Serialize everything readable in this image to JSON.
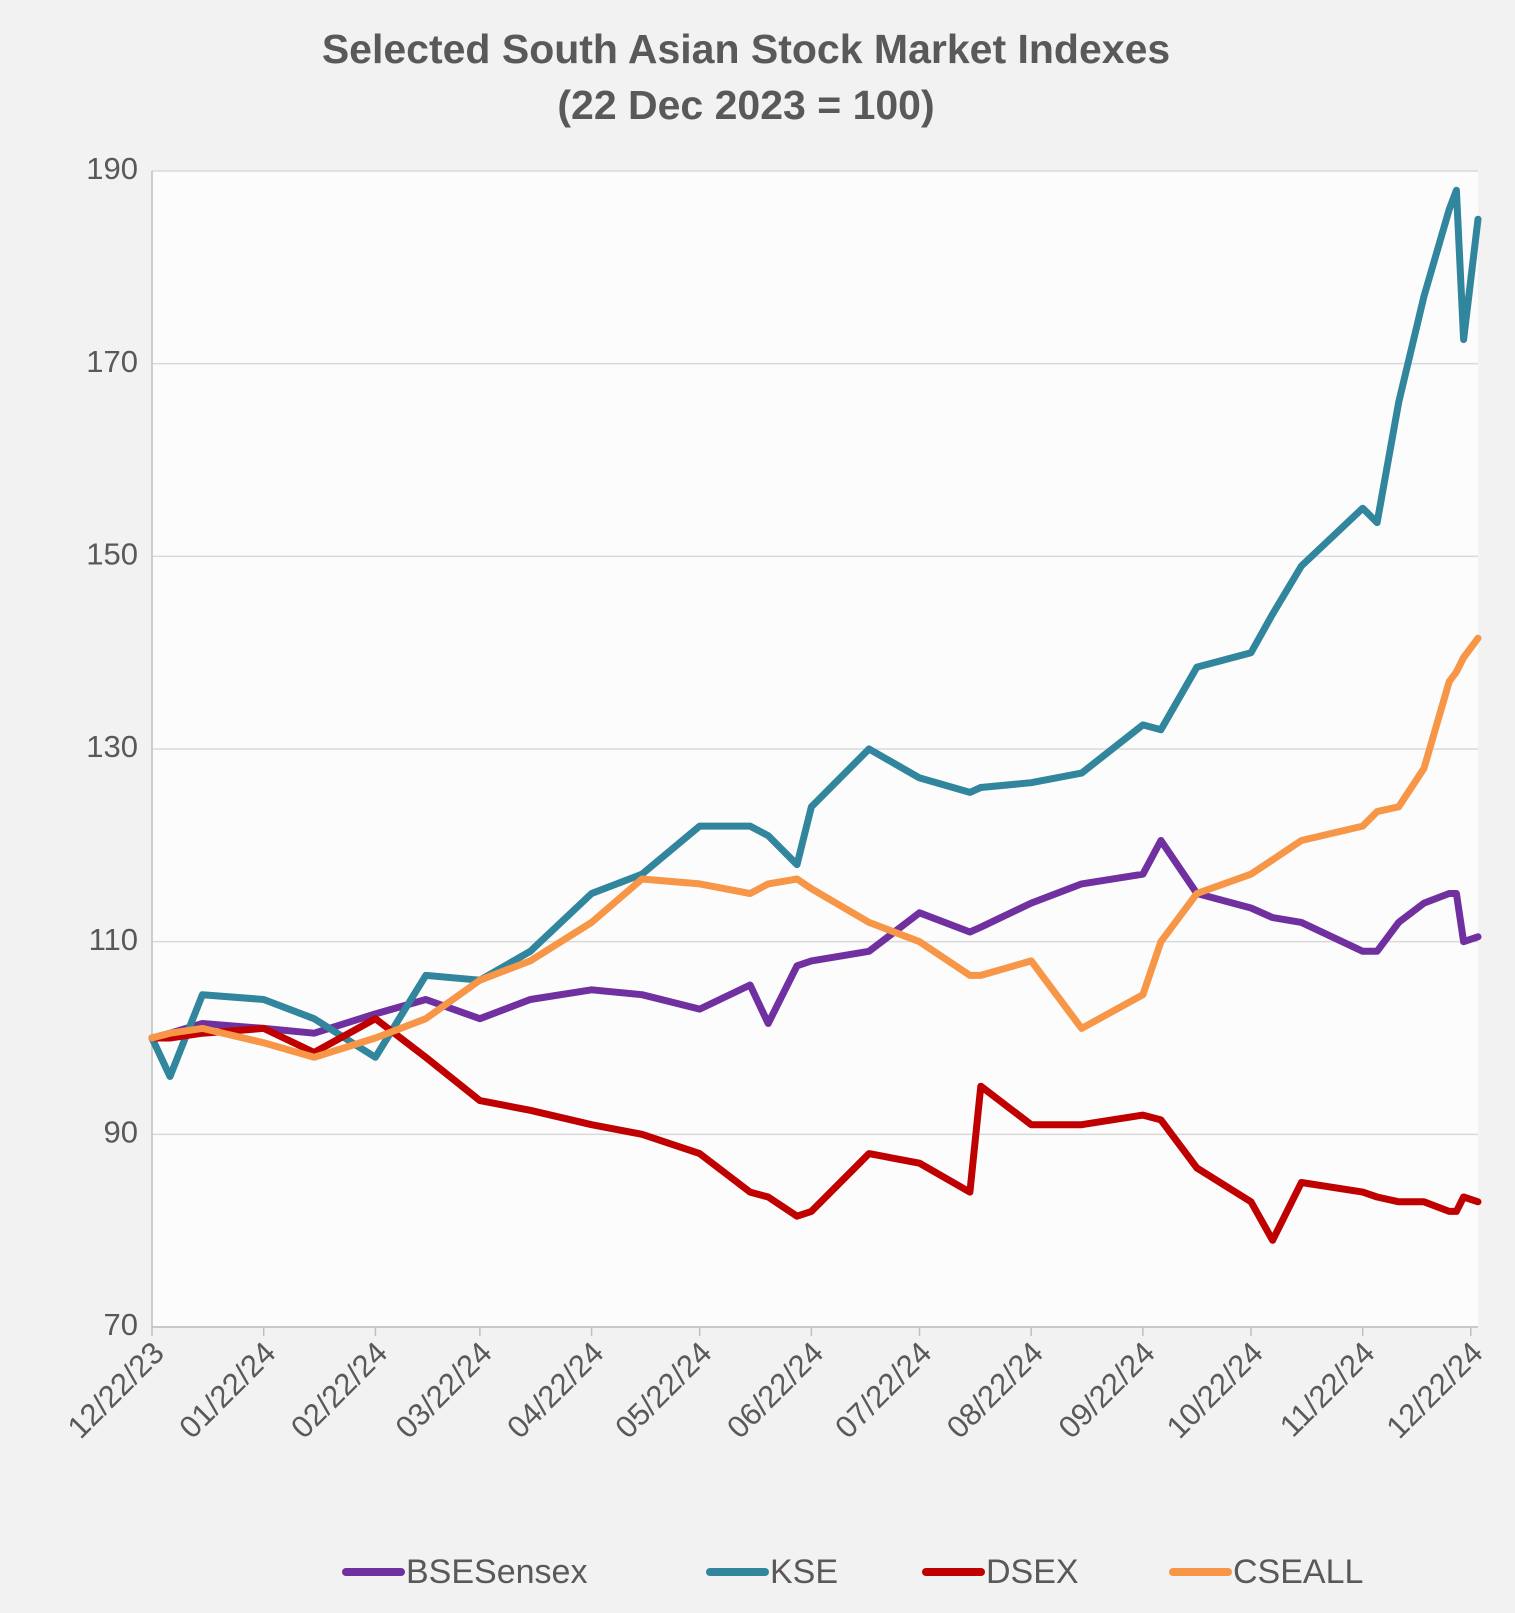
{
  "chart_data": {
    "type": "line",
    "title": "Selected South Asian Stock Market Indexes",
    "subtitle": "(22 Dec 2023 = 100)",
    "x": [
      "12/22/23",
      "12/27/23",
      "01/05/24",
      "01/22/24",
      "02/05/24",
      "02/22/24",
      "03/07/24",
      "03/22/24",
      "04/05/24",
      "04/22/24",
      "05/06/24",
      "05/22/24",
      "06/05/24",
      "06/10/24",
      "06/18/24",
      "06/22/24",
      "07/08/24",
      "07/22/24",
      "08/05/24",
      "08/08/24",
      "08/22/24",
      "09/05/24",
      "09/22/24",
      "09/27/24",
      "10/07/24",
      "10/22/24",
      "10/28/24",
      "11/05/24",
      "11/22/24",
      "11/26/24",
      "12/02/24",
      "12/09/24",
      "12/16/24",
      "12/18/24",
      "12/20/24",
      "12/24/24"
    ],
    "xlim": [
      "12/22/23",
      "12/24/24"
    ],
    "xticks": [
      "12/22/23",
      "01/22/24",
      "02/22/24",
      "03/22/24",
      "04/22/24",
      "05/22/24",
      "06/22/24",
      "07/22/24",
      "08/22/24",
      "09/22/24",
      "10/22/24",
      "11/22/24",
      "12/22/24"
    ],
    "ylim": [
      70,
      190
    ],
    "yticks": [
      70,
      90,
      110,
      130,
      150,
      170,
      190
    ],
    "grid": true,
    "legend": "bottom",
    "series": [
      {
        "name": "BSESensex",
        "color": "#7030a0",
        "values": [
          100,
          100.5,
          101.5,
          101,
          100.5,
          102.5,
          104,
          102,
          104,
          105,
          104.5,
          103,
          105.5,
          101.5,
          107.5,
          108,
          109,
          113,
          111,
          111.5,
          114,
          116,
          117,
          120.5,
          115,
          113.5,
          112.5,
          112,
          109,
          109,
          112,
          114,
          115,
          115,
          110,
          110.5
        ]
      },
      {
        "name": "KSE",
        "color": "#31859c",
        "values": [
          100,
          96,
          104.5,
          104,
          102,
          98,
          106.5,
          106,
          109,
          115,
          117,
          122,
          122,
          121,
          118,
          124,
          130,
          127,
          125.5,
          126,
          126.5,
          127.5,
          132.5,
          132,
          138.5,
          140,
          144,
          149,
          155,
          153.5,
          166,
          177,
          186,
          188,
          172.5,
          185
        ]
      },
      {
        "name": "DSEX",
        "color": "#c00000",
        "values": [
          100,
          100,
          100.5,
          101,
          98.5,
          102,
          98,
          93.5,
          92.5,
          91,
          90,
          88,
          84,
          83.5,
          81.5,
          82,
          88,
          87,
          84,
          95,
          91,
          91,
          92,
          91.5,
          86.5,
          83,
          79,
          85,
          84,
          83.5,
          83,
          83,
          82,
          82,
          83.5,
          83
        ]
      },
      {
        "name": "CSEALL",
        "color": "#f79646",
        "values": [
          100,
          100.5,
          101,
          99.5,
          98,
          100,
          102,
          106,
          108,
          112,
          116.5,
          116,
          115,
          116,
          116.5,
          115.5,
          112,
          110,
          106.5,
          106.5,
          108,
          101,
          104.5,
          110,
          115,
          117,
          118.5,
          120.5,
          122,
          123.5,
          124,
          128,
          137,
          138,
          139.5,
          141.5
        ]
      }
    ]
  }
}
